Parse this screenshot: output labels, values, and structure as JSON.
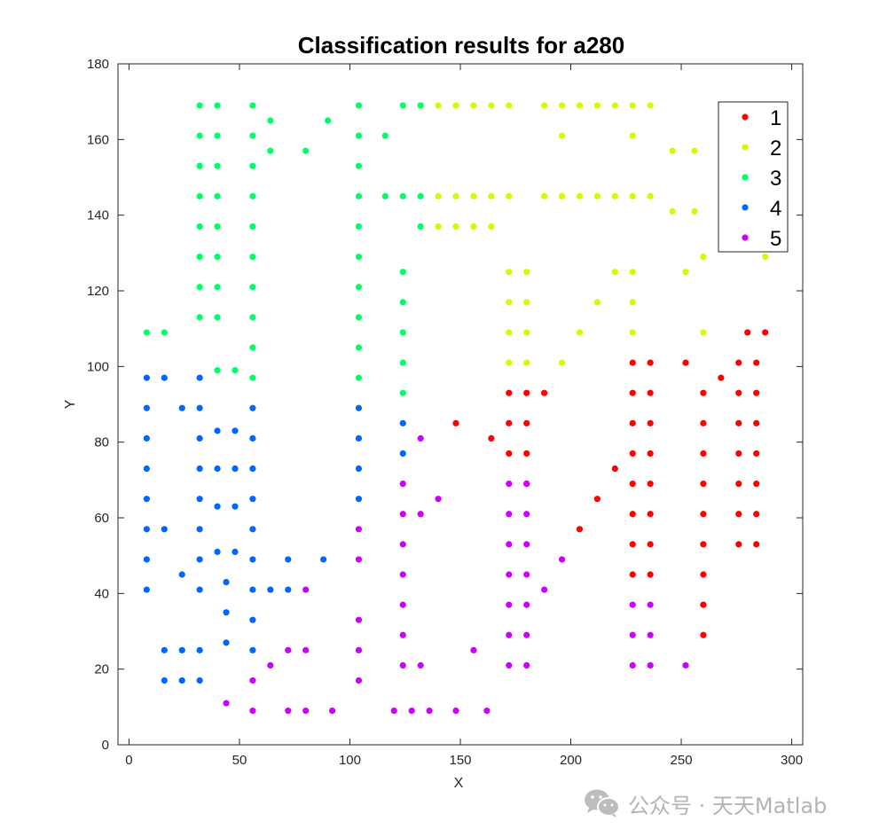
{
  "chart_data": {
    "type": "scatter",
    "title": "Classification results for a280",
    "xlabel": "X",
    "ylabel": "Y",
    "xlim": [
      -5,
      305
    ],
    "ylim": [
      0,
      180
    ],
    "xticks": [
      0,
      50,
      100,
      150,
      200,
      250,
      300
    ],
    "yticks": [
      0,
      20,
      40,
      60,
      80,
      100,
      120,
      140,
      160,
      180
    ],
    "grid": false,
    "legend_position": "top-right",
    "series": [
      {
        "name": "1",
        "color": "#ff0000",
        "points": [
          [
            148,
            85
          ],
          [
            164,
            81
          ],
          [
            172,
            93
          ],
          [
            172,
            85
          ],
          [
            172,
            77
          ],
          [
            180,
            93
          ],
          [
            180,
            85
          ],
          [
            180,
            77
          ],
          [
            180,
            69
          ],
          [
            188,
            93
          ],
          [
            204,
            57
          ],
          [
            212,
            65
          ],
          [
            220,
            73
          ],
          [
            228,
            101
          ],
          [
            228,
            93
          ],
          [
            228,
            85
          ],
          [
            228,
            77
          ],
          [
            228,
            69
          ],
          [
            228,
            61
          ],
          [
            228,
            53
          ],
          [
            228,
            45
          ],
          [
            236,
            101
          ],
          [
            236,
            93
          ],
          [
            236,
            85
          ],
          [
            236,
            77
          ],
          [
            236,
            69
          ],
          [
            236,
            61
          ],
          [
            236,
            53
          ],
          [
            236,
            45
          ],
          [
            252,
            101
          ],
          [
            260,
            93
          ],
          [
            260,
            85
          ],
          [
            260,
            77
          ],
          [
            260,
            69
          ],
          [
            260,
            61
          ],
          [
            260,
            53
          ],
          [
            260,
            45
          ],
          [
            260,
            37
          ],
          [
            260,
            29
          ],
          [
            268,
            97
          ],
          [
            276,
            101
          ],
          [
            276,
            93
          ],
          [
            276,
            85
          ],
          [
            276,
            77
          ],
          [
            276,
            69
          ],
          [
            276,
            61
          ],
          [
            276,
            53
          ],
          [
            280,
            109
          ],
          [
            284,
            101
          ],
          [
            284,
            93
          ],
          [
            284,
            85
          ],
          [
            284,
            77
          ],
          [
            284,
            69
          ],
          [
            284,
            61
          ],
          [
            284,
            53
          ],
          [
            288,
            109
          ]
        ]
      },
      {
        "name": "2",
        "color": "#ccff00",
        "points": [
          [
            132,
            169
          ],
          [
            140,
            169
          ],
          [
            148,
            169
          ],
          [
            156,
            169
          ],
          [
            164,
            169
          ],
          [
            172,
            169
          ],
          [
            188,
            169
          ],
          [
            196,
            169
          ],
          [
            204,
            169
          ],
          [
            212,
            169
          ],
          [
            220,
            169
          ],
          [
            228,
            169
          ],
          [
            236,
            169
          ],
          [
            196,
            161
          ],
          [
            228,
            161
          ],
          [
            246,
            157
          ],
          [
            256,
            157
          ],
          [
            140,
            145
          ],
          [
            148,
            145
          ],
          [
            156,
            145
          ],
          [
            164,
            145
          ],
          [
            172,
            145
          ],
          [
            188,
            145
          ],
          [
            196,
            145
          ],
          [
            204,
            145
          ],
          [
            212,
            145
          ],
          [
            220,
            145
          ],
          [
            228,
            145
          ],
          [
            236,
            145
          ],
          [
            246,
            141
          ],
          [
            256,
            141
          ],
          [
            140,
            137
          ],
          [
            148,
            137
          ],
          [
            156,
            137
          ],
          [
            164,
            137
          ],
          [
            260,
            129
          ],
          [
            288,
            129
          ],
          [
            172,
            125
          ],
          [
            180,
            125
          ],
          [
            220,
            125
          ],
          [
            228,
            125
          ],
          [
            252,
            125
          ],
          [
            172,
            117
          ],
          [
            180,
            117
          ],
          [
            212,
            117
          ],
          [
            228,
            117
          ],
          [
            172,
            109
          ],
          [
            180,
            109
          ],
          [
            204,
            109
          ],
          [
            228,
            109
          ],
          [
            260,
            109
          ],
          [
            172,
            101
          ],
          [
            180,
            101
          ],
          [
            196,
            101
          ]
        ]
      },
      {
        "name": "3",
        "color": "#00ff66",
        "points": [
          [
            32,
            169
          ],
          [
            40,
            169
          ],
          [
            56,
            169
          ],
          [
            104,
            169
          ],
          [
            124,
            169
          ],
          [
            132,
            169
          ],
          [
            64,
            165
          ],
          [
            90,
            165
          ],
          [
            32,
            161
          ],
          [
            40,
            161
          ],
          [
            56,
            161
          ],
          [
            104,
            161
          ],
          [
            116,
            161
          ],
          [
            64,
            157
          ],
          [
            80,
            157
          ],
          [
            32,
            153
          ],
          [
            40,
            153
          ],
          [
            56,
            153
          ],
          [
            104,
            153
          ],
          [
            32,
            145
          ],
          [
            40,
            145
          ],
          [
            56,
            145
          ],
          [
            104,
            145
          ],
          [
            116,
            145
          ],
          [
            124,
            145
          ],
          [
            132,
            145
          ],
          [
            32,
            137
          ],
          [
            40,
            137
          ],
          [
            56,
            137
          ],
          [
            104,
            137
          ],
          [
            132,
            137
          ],
          [
            32,
            129
          ],
          [
            40,
            129
          ],
          [
            56,
            129
          ],
          [
            104,
            129
          ],
          [
            124,
            125
          ],
          [
            32,
            121
          ],
          [
            40,
            121
          ],
          [
            56,
            121
          ],
          [
            104,
            121
          ],
          [
            124,
            117
          ],
          [
            32,
            113
          ],
          [
            40,
            113
          ],
          [
            56,
            113
          ],
          [
            104,
            113
          ],
          [
            8,
            109
          ],
          [
            16,
            109
          ],
          [
            124,
            109
          ],
          [
            56,
            105
          ],
          [
            104,
            105
          ],
          [
            124,
            101
          ],
          [
            40,
            99
          ],
          [
            48,
            99
          ],
          [
            56,
            97
          ],
          [
            104,
            97
          ],
          [
            124,
            93
          ]
        ]
      },
      {
        "name": "4",
        "color": "#0066ff",
        "points": [
          [
            8,
            97
          ],
          [
            16,
            97
          ],
          [
            32,
            97
          ],
          [
            8,
            89
          ],
          [
            24,
            89
          ],
          [
            32,
            89
          ],
          [
            56,
            89
          ],
          [
            104,
            89
          ],
          [
            124,
            85
          ],
          [
            40,
            83
          ],
          [
            48,
            83
          ],
          [
            8,
            81
          ],
          [
            32,
            81
          ],
          [
            56,
            81
          ],
          [
            104,
            81
          ],
          [
            124,
            77
          ],
          [
            8,
            73
          ],
          [
            32,
            73
          ],
          [
            40,
            73
          ],
          [
            48,
            73
          ],
          [
            56,
            73
          ],
          [
            104,
            73
          ],
          [
            8,
            65
          ],
          [
            32,
            65
          ],
          [
            56,
            65
          ],
          [
            104,
            65
          ],
          [
            40,
            63
          ],
          [
            48,
            63
          ],
          [
            8,
            57
          ],
          [
            16,
            57
          ],
          [
            32,
            57
          ],
          [
            56,
            57
          ],
          [
            40,
            51
          ],
          [
            48,
            51
          ],
          [
            8,
            49
          ],
          [
            32,
            49
          ],
          [
            56,
            49
          ],
          [
            72,
            49
          ],
          [
            88,
            49
          ],
          [
            24,
            45
          ],
          [
            44,
            43
          ],
          [
            8,
            41
          ],
          [
            32,
            41
          ],
          [
            56,
            41
          ],
          [
            64,
            41
          ],
          [
            72,
            41
          ],
          [
            44,
            35
          ],
          [
            56,
            33
          ],
          [
            44,
            27
          ],
          [
            16,
            25
          ],
          [
            24,
            25
          ],
          [
            32,
            25
          ],
          [
            56,
            25
          ],
          [
            16,
            17
          ],
          [
            24,
            17
          ],
          [
            32,
            17
          ]
        ]
      },
      {
        "name": "5",
        "color": "#cc00ff",
        "points": [
          [
            132,
            81
          ],
          [
            124,
            69
          ],
          [
            172,
            69
          ],
          [
            180,
            69
          ],
          [
            140,
            65
          ],
          [
            124,
            61
          ],
          [
            132,
            61
          ],
          [
            172,
            61
          ],
          [
            180,
            61
          ],
          [
            104,
            57
          ],
          [
            124,
            53
          ],
          [
            172,
            53
          ],
          [
            180,
            53
          ],
          [
            104,
            49
          ],
          [
            196,
            49
          ],
          [
            124,
            45
          ],
          [
            172,
            45
          ],
          [
            180,
            45
          ],
          [
            80,
            41
          ],
          [
            188,
            41
          ],
          [
            104,
            33
          ],
          [
            124,
            37
          ],
          [
            172,
            37
          ],
          [
            180,
            37
          ],
          [
            228,
            37
          ],
          [
            236,
            37
          ],
          [
            124,
            29
          ],
          [
            172,
            29
          ],
          [
            180,
            29
          ],
          [
            228,
            29
          ],
          [
            236,
            29
          ],
          [
            72,
            25
          ],
          [
            80,
            25
          ],
          [
            104,
            25
          ],
          [
            156,
            25
          ],
          [
            64,
            21
          ],
          [
            124,
            21
          ],
          [
            132,
            21
          ],
          [
            172,
            21
          ],
          [
            180,
            21
          ],
          [
            228,
            21
          ],
          [
            236,
            21
          ],
          [
            252,
            21
          ],
          [
            56,
            17
          ],
          [
            104,
            17
          ],
          [
            44,
            11
          ],
          [
            56,
            9
          ],
          [
            72,
            9
          ],
          [
            80,
            9
          ],
          [
            92,
            9
          ],
          [
            120,
            9
          ],
          [
            128,
            9
          ],
          [
            136,
            9
          ],
          [
            148,
            9
          ],
          [
            162,
            9
          ]
        ]
      }
    ]
  },
  "watermark": {
    "text": "公众号 · 天天Matlab",
    "icon": "wechat-icon"
  }
}
